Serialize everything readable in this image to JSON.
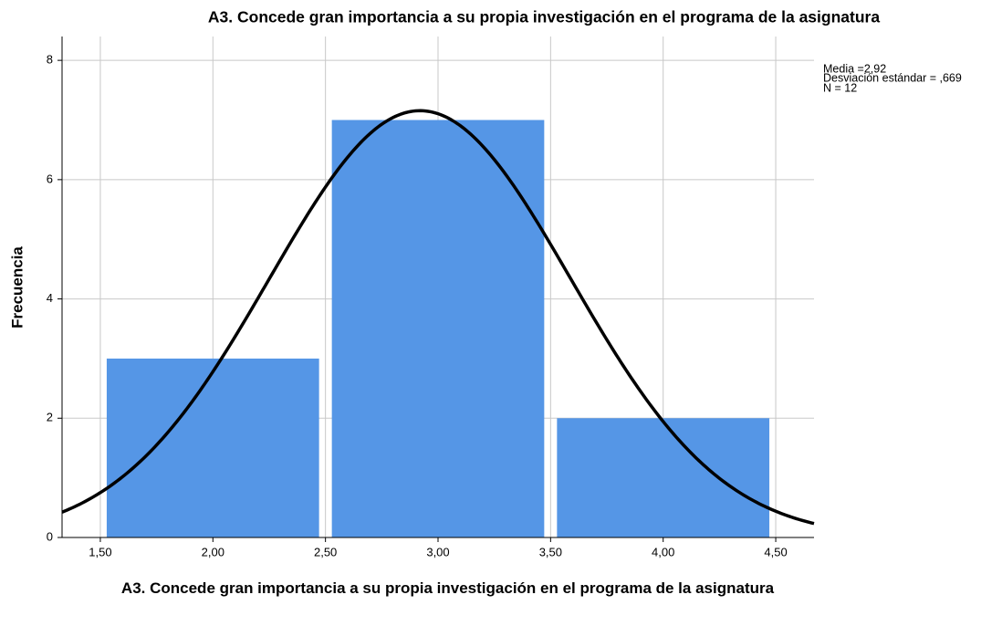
{
  "chart_data": {
    "type": "histogram",
    "title": "A3. Concede gran importancia a su propia investigación en el programa de la asignatura",
    "xlabel": "A3. Concede gran importancia a su propia investigación en el programa de la asignatura",
    "ylabel": "Frecuencia",
    "bins": [
      1.5,
      2.5,
      3.5,
      4.5
    ],
    "values": [
      3,
      7,
      2
    ],
    "color": "#5596e6",
    "curve_color": "#000000",
    "xlim": [
      1.33,
      4.67
    ],
    "ylim": [
      0,
      8.4
    ],
    "xticks": [
      {
        "value": 1.5,
        "label": "1,50"
      },
      {
        "value": 2.0,
        "label": "2,00"
      },
      {
        "value": 2.5,
        "label": "2,50"
      },
      {
        "value": 3.0,
        "label": "3,00"
      },
      {
        "value": 3.5,
        "label": "3,50"
      },
      {
        "value": 4.0,
        "label": "4,00"
      },
      {
        "value": 4.5,
        "label": "4,50"
      }
    ],
    "yticks": [
      0,
      2,
      4,
      6,
      8
    ],
    "grid": true,
    "stats": {
      "mean": {
        "value": 2.92,
        "label": "Media =2,92"
      },
      "sd": {
        "value": 0.669,
        "label": "Desviación estándar = ,669"
      },
      "n": {
        "value": 12,
        "label": "N = 12"
      }
    }
  }
}
